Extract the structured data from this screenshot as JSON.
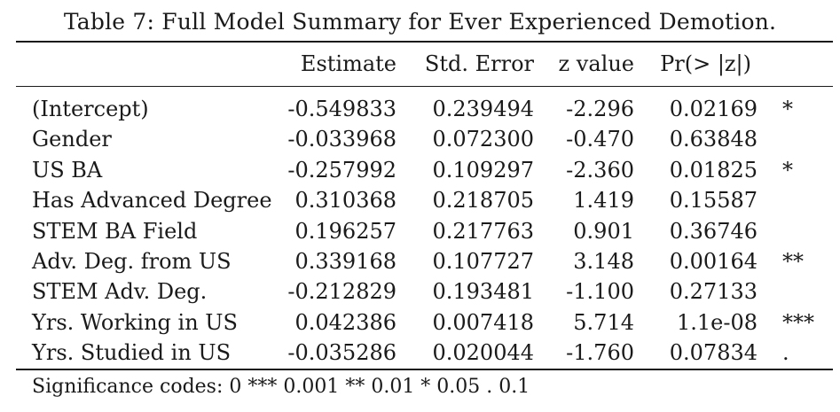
{
  "caption": "Table 7: Full Model Summary for Ever Experienced Demotion.",
  "columns": {
    "label": "",
    "estimate": "Estimate",
    "std_error": "Std. Error",
    "z_value": "z value",
    "p_value": "Pr(> |z|)",
    "sig": ""
  },
  "rows": [
    {
      "label": "(Intercept)",
      "estimate": "-0.549833",
      "std_error": "0.239494",
      "z_value": "-2.296",
      "p_value": "0.02169",
      "sig": "*"
    },
    {
      "label": "Gender",
      "estimate": "-0.033968",
      "std_error": "0.072300",
      "z_value": "-0.470",
      "p_value": "0.63848",
      "sig": ""
    },
    {
      "label": "US BA",
      "estimate": "-0.257992",
      "std_error": "0.109297",
      "z_value": "-2.360",
      "p_value": "0.01825",
      "sig": "*"
    },
    {
      "label": "Has Advanced Degree",
      "estimate": "0.310368",
      "std_error": "0.218705",
      "z_value": "1.419",
      "p_value": "0.15587",
      "sig": ""
    },
    {
      "label": "STEM BA Field",
      "estimate": "0.196257",
      "std_error": "0.217763",
      "z_value": "0.901",
      "p_value": "0.36746",
      "sig": ""
    },
    {
      "label": "Adv. Deg. from US",
      "estimate": "0.339168",
      "std_error": "0.107727",
      "z_value": "3.148",
      "p_value": "0.00164",
      "sig": "**"
    },
    {
      "label": "STEM Adv. Deg.",
      "estimate": "-0.212829",
      "std_error": "0.193481",
      "z_value": "-1.100",
      "p_value": "0.27133",
      "sig": ""
    },
    {
      "label": "Yrs. Working in US",
      "estimate": "0.042386",
      "std_error": "0.007418",
      "z_value": "5.714",
      "p_value": "1.1e-08",
      "sig": "***"
    },
    {
      "label": "Yrs. Studied in US",
      "estimate": "-0.035286",
      "std_error": "0.020044",
      "z_value": "-1.760",
      "p_value": "0.07834",
      "sig": "."
    }
  ],
  "footnote": "Significance codes: 0 *** 0.001 ** 0.01 * 0.05 . 0.1"
}
